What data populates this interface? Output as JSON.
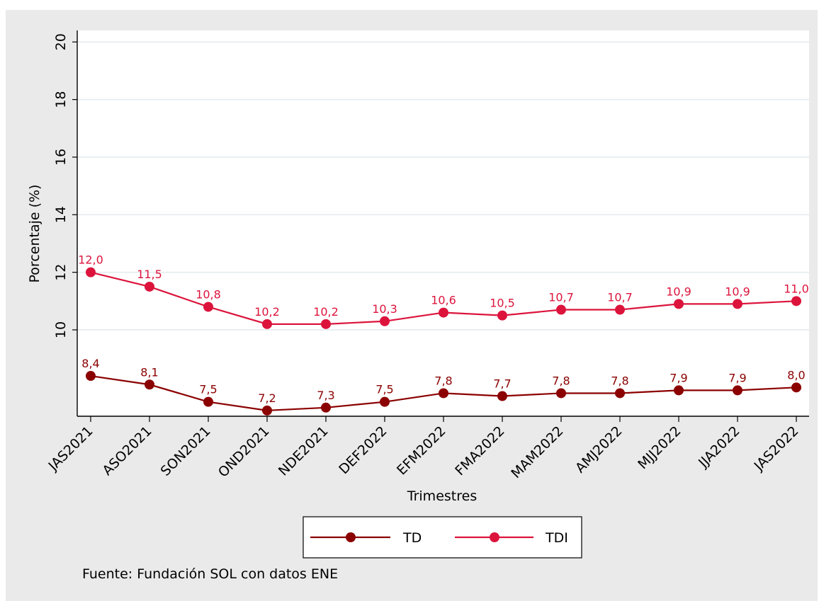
{
  "chart_data": {
    "type": "line",
    "categories": [
      "JAS2021",
      "ASO2021",
      "SON2021",
      "OND2021",
      "NDE2021",
      "DEF2022",
      "EFM2022",
      "FMA2022",
      "MAM2022",
      "AMJ2022",
      "MJJ2022",
      "JJA2022",
      "JAS2022"
    ],
    "series": [
      {
        "name": "TD",
        "values": [
          8.4,
          8.1,
          7.5,
          7.2,
          7.3,
          7.5,
          7.8,
          7.7,
          7.8,
          7.8,
          7.9,
          7.9,
          8.0
        ],
        "labels": [
          "8,4",
          "8,1",
          "7,5",
          "7,2",
          "7,3",
          "7,5",
          "7,8",
          "7,7",
          "7,8",
          "7,8",
          "7,9",
          "7,9",
          "8,0"
        ],
        "color": "#8b0000"
      },
      {
        "name": "TDI",
        "values": [
          12.0,
          11.5,
          10.8,
          10.2,
          10.2,
          10.3,
          10.6,
          10.5,
          10.7,
          10.7,
          10.9,
          10.9,
          11.0
        ],
        "labels": [
          "12,0",
          "11,5",
          "10,8",
          "10,2",
          "10,2",
          "10,3",
          "10,6",
          "10,5",
          "10,7",
          "10,7",
          "10,9",
          "10,9",
          "11,0"
        ],
        "color": "#dc143c"
      }
    ],
    "xlabel": "Trimestres",
    "ylabel": "Porcentaje (%)",
    "yticks": [
      10,
      12,
      14,
      16,
      18,
      20
    ],
    "ytick_labels": [
      "10",
      "12",
      "14",
      "16",
      "18",
      "20"
    ],
    "ylim": [
      7.0,
      20.4
    ],
    "grid": true,
    "legend_placement": "bottom",
    "note": "Fuente: Fundación SOL con datos ENE"
  }
}
